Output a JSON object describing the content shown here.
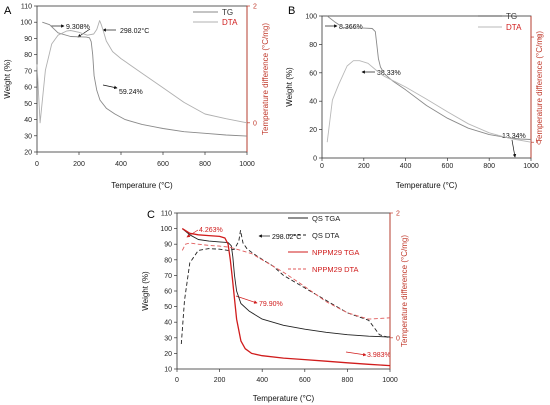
{
  "chart_data": [
    {
      "panel": "A",
      "type": "line",
      "xlabel": "Temperature (°C)",
      "ylabel": "Weight (%)",
      "y2label": "Temperature difference (°C/mg)",
      "xlim": [
        0,
        1000
      ],
      "ylim": [
        20,
        110
      ],
      "y2lim": [
        -0.5,
        2
      ],
      "xticks": [
        "0",
        "200",
        "400",
        "600",
        "800",
        "1000"
      ],
      "yticks": [
        "20",
        "30",
        "40",
        "50",
        "60",
        "70",
        "80",
        "90",
        "100",
        "110"
      ],
      "y2ticks": [
        "0",
        "2"
      ],
      "legend": "top-right",
      "series": [
        {
          "name": "TG",
          "axis": "left",
          "style": "solid",
          "color": "#8a8a8a",
          "x": [
            25,
            60,
            100,
            160,
            200,
            235,
            250,
            258,
            265,
            272,
            285,
            300,
            330,
            370,
            420,
            500,
            600,
            700,
            800,
            900,
            1000
          ],
          "y": [
            100,
            98.5,
            93.5,
            91.2,
            91.0,
            90.8,
            90.4,
            88,
            80,
            67,
            58,
            52,
            47,
            43.5,
            40,
            37,
            34.5,
            32.5,
            31.5,
            30.5,
            29.8
          ]
        },
        {
          "name": "DTA",
          "axis": "right",
          "style": "solid",
          "color": "#b0b0b0",
          "x": [
            0,
            15,
            40,
            70,
            100,
            140,
            160,
            200,
            240,
            270,
            285,
            298,
            306,
            315,
            330,
            360,
            400,
            500,
            600,
            700,
            800,
            900,
            1000
          ],
          "y": [
            1.0,
            0.0,
            0.9,
            1.35,
            1.5,
            1.57,
            1.58,
            1.55,
            1.5,
            1.52,
            1.6,
            1.75,
            1.68,
            1.58,
            1.4,
            1.22,
            1.1,
            0.85,
            0.6,
            0.35,
            0.15,
            0.07,
            0.0
          ]
        }
      ],
      "annotations": [
        "9.308%",
        "298.02°C",
        "59.24%"
      ]
    },
    {
      "panel": "B",
      "type": "line",
      "xlabel": "Temperature (°C)",
      "ylabel": "Weight (%)",
      "y2label": "Temperature difference (°C/mg)",
      "xlim": [
        0,
        1000
      ],
      "ylim": [
        0,
        100
      ],
      "y2lim": [
        -0.3,
        2.4
      ],
      "xticks": [
        "0",
        "200",
        "400",
        "600",
        "800",
        "1000"
      ],
      "yticks": [
        "0",
        "20",
        "40",
        "60",
        "80",
        "100"
      ],
      "y2ticks": [
        "0",
        "2"
      ],
      "legend": "top-right",
      "series": [
        {
          "name": "TG",
          "axis": "left",
          "style": "solid",
          "color": "#8a8a8a",
          "x": [
            25,
            60,
            100,
            150,
            200,
            240,
            255,
            262,
            270,
            280,
            300,
            340,
            400,
            500,
            600,
            700,
            800,
            900,
            950,
            1000
          ],
          "y": [
            100,
            96,
            92,
            91.6,
            91.5,
            91.2,
            89,
            80,
            70,
            64,
            59,
            54,
            48,
            37,
            28,
            21,
            16.5,
            14,
            13.4,
            13
          ]
        },
        {
          "name": "DTA",
          "axis": "right",
          "style": "solid",
          "color": "#b8b8b8",
          "x": [
            25,
            50,
            80,
            120,
            150,
            180,
            220,
            250,
            280,
            300,
            350,
            400,
            500,
            600,
            700,
            800,
            900,
            1000
          ],
          "y": [
            0.0,
            0.8,
            1.1,
            1.45,
            1.55,
            1.55,
            1.5,
            1.4,
            1.3,
            1.25,
            1.15,
            1.05,
            0.82,
            0.58,
            0.35,
            0.18,
            0.07,
            0.0
          ]
        }
      ],
      "annotations": [
        "8.366%",
        "38.33%",
        "13.34%"
      ]
    },
    {
      "panel": "C",
      "type": "line",
      "xlabel": "Temperature (°C)",
      "ylabel": "Weight (%)",
      "y2label": "Temperature difference (°C/mg)",
      "xlim": [
        0,
        1000
      ],
      "ylim": [
        10,
        110
      ],
      "y2lim": [
        -0.5,
        2
      ],
      "xticks": [
        "0",
        "200",
        "400",
        "600",
        "800",
        "1000"
      ],
      "yticks": [
        "10",
        "20",
        "30",
        "40",
        "50",
        "60",
        "70",
        "80",
        "90",
        "100",
        "110"
      ],
      "y2ticks": [
        "0",
        "2"
      ],
      "legend": "top-right",
      "series": [
        {
          "name": "QS TGA",
          "axis": "left",
          "style": "solid",
          "color": "#222222",
          "x": [
            25,
            60,
            100,
            150,
            200,
            240,
            255,
            262,
            270,
            280,
            300,
            340,
            400,
            500,
            600,
            700,
            800,
            900,
            1000
          ],
          "y": [
            100,
            96,
            93,
            92,
            91.5,
            91,
            89,
            82,
            70,
            60,
            52,
            47,
            42,
            38,
            35.5,
            33.5,
            32,
            31,
            30.5
          ]
        },
        {
          "name": "QS DTA",
          "axis": "right",
          "style": "dashed",
          "color": "#222222",
          "x": [
            20,
            35,
            60,
            100,
            150,
            200,
            240,
            270,
            290,
            298,
            310,
            330,
            380,
            450,
            500,
            600,
            700,
            800,
            900,
            950,
            1000
          ],
          "y": [
            -0.1,
            0.6,
            1.2,
            1.4,
            1.43,
            1.42,
            1.4,
            1.42,
            1.55,
            1.72,
            1.52,
            1.42,
            1.3,
            1.15,
            1.0,
            0.8,
            0.6,
            0.4,
            0.28,
            0.05,
            0.0
          ]
        },
        {
          "name": "NPPM29 TGA",
          "axis": "left",
          "style": "solid",
          "color": "#d01c1c",
          "x": [
            25,
            60,
            100,
            150,
            200,
            225,
            240,
            250,
            260,
            270,
            280,
            300,
            320,
            350,
            400,
            500,
            600,
            700,
            800,
            900,
            1000
          ],
          "y": [
            100,
            97,
            96,
            95.5,
            95,
            94,
            90,
            80,
            68,
            55,
            42,
            28,
            23,
            20,
            18.5,
            17,
            16,
            15,
            14,
            13,
            12.2
          ]
        },
        {
          "name": "NPPM29 DTA",
          "axis": "right",
          "style": "dashed",
          "color": "#e05a5a",
          "x": [
            25,
            40,
            60,
            100,
            150,
            200,
            250,
            280,
            300,
            350,
            400,
            500,
            600,
            700,
            800,
            900,
            1000
          ],
          "y": [
            1.4,
            1.5,
            1.52,
            1.5,
            1.48,
            1.47,
            1.45,
            1.42,
            1.4,
            1.35,
            1.25,
            1.05,
            0.82,
            0.58,
            0.4,
            0.3,
            0.32
          ]
        }
      ],
      "annotations": [
        "4.263%",
        "298.02°C",
        "79.90%",
        "3.983%"
      ]
    }
  ]
}
